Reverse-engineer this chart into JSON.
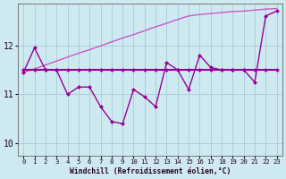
{
  "background_color": "#ceeaf0",
  "grid_color": "#aacfdc",
  "line_zigzag_color": "#990099",
  "line_smooth_color": "#cc55cc",
  "line_flat_color": "#990099",
  "xlabel": "Windchill (Refroidissement éolien,°C)",
  "ylim": [
    9.75,
    12.85
  ],
  "xlim": [
    -0.5,
    23.5
  ],
  "yticks": [
    10,
    11,
    12
  ],
  "xticks": [
    0,
    1,
    2,
    3,
    4,
    5,
    6,
    7,
    8,
    9,
    10,
    11,
    12,
    13,
    14,
    15,
    16,
    17,
    18,
    19,
    20,
    21,
    22,
    23
  ],
  "x": [
    0,
    1,
    2,
    3,
    4,
    5,
    6,
    7,
    8,
    9,
    10,
    11,
    12,
    13,
    14,
    15,
    16,
    17,
    18,
    19,
    20,
    21,
    22,
    23
  ],
  "y_zigzag": [
    11.45,
    11.95,
    11.5,
    11.5,
    11.0,
    11.15,
    11.15,
    10.75,
    10.45,
    10.4,
    11.1,
    10.95,
    10.75,
    11.65,
    11.5,
    11.1,
    11.8,
    11.55,
    11.5,
    11.5,
    11.5,
    11.25,
    12.6,
    12.7
  ],
  "y_smooth": [
    11.45,
    11.52,
    11.6,
    11.68,
    11.76,
    11.84,
    11.91,
    11.99,
    12.07,
    12.15,
    12.22,
    12.3,
    12.38,
    12.45,
    12.53,
    12.6,
    12.63,
    12.65,
    12.67,
    12.69,
    12.7,
    12.72,
    12.74,
    12.75
  ],
  "y_flat": [
    11.5,
    11.5,
    11.5,
    11.5,
    11.5,
    11.5,
    11.5,
    11.5,
    11.5,
    11.5,
    11.5,
    11.5,
    11.5,
    11.5,
    11.5,
    11.5,
    11.5,
    11.5,
    11.5,
    11.5,
    11.5,
    11.5,
    11.5,
    11.5
  ],
  "markersize": 2.5,
  "linewidth_zigzag": 1.0,
  "linewidth_smooth": 1.0,
  "linewidth_flat": 1.5
}
